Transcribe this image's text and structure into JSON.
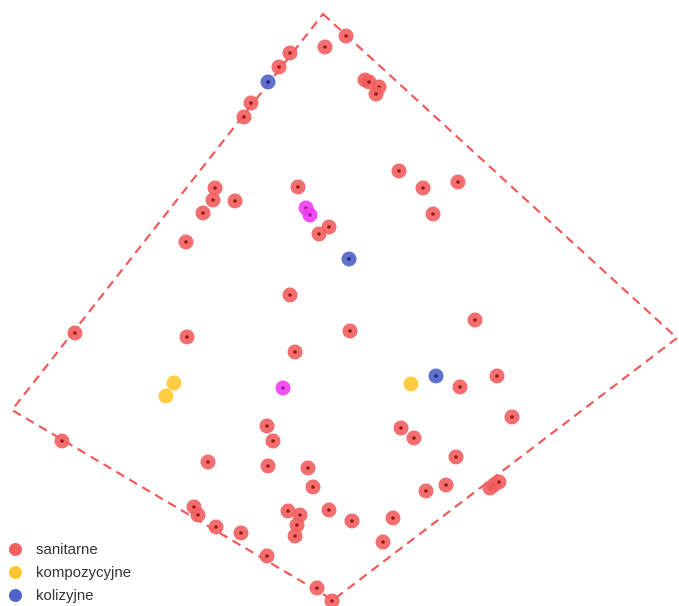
{
  "colors": {
    "boundary": "#f05a5a",
    "sanitarne": "#f25f5f",
    "sanitarne_dot": "#a01818",
    "kompozycyjne": "#ffc62e",
    "kolizyjne": "#4f63c9",
    "kolizyjne_dot": "#1a2a80",
    "magenta": "#f03cf0",
    "magenta_dot": "#a01aa0"
  },
  "legend": {
    "items": [
      {
        "label": "sanitarne",
        "category": "sanitarne"
      },
      {
        "label": "kompozycyjne",
        "category": "kompozycyjne"
      },
      {
        "label": "kolizyjne",
        "category": "kolizyjne"
      }
    ]
  }
}
